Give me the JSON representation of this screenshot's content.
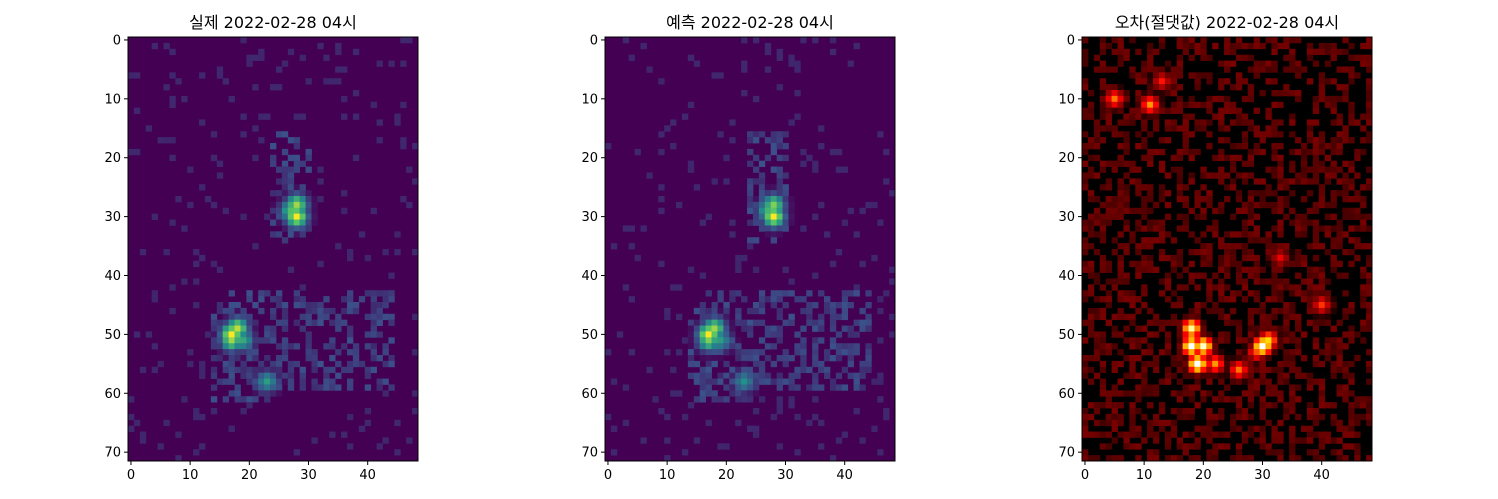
{
  "figure": {
    "background": "#ffffff"
  },
  "chart_data": [
    {
      "type": "heatmap",
      "title": "실제 2022-02-28 04시",
      "colormap": "viridis",
      "rows": 72,
      "cols": 49,
      "xlim": [
        -0.5,
        48.5
      ],
      "ylim": [
        71.5,
        -0.5
      ],
      "x_ticks": [
        0,
        10,
        20,
        30,
        40
      ],
      "y_ticks": [
        0,
        10,
        20,
        30,
        40,
        50,
        60,
        70
      ],
      "hotspots": [
        {
          "x": 28,
          "y": 28,
          "value": 0.85
        },
        {
          "x": 28,
          "y": 30,
          "value": 1.0
        },
        {
          "x": 27,
          "y": 29,
          "value": 0.7
        },
        {
          "x": 18,
          "y": 49,
          "value": 0.9
        },
        {
          "x": 17,
          "y": 50,
          "value": 1.0
        },
        {
          "x": 17,
          "y": 51,
          "value": 0.85
        },
        {
          "x": 19,
          "y": 51,
          "value": 0.6
        },
        {
          "x": 23,
          "y": 58,
          "value": 0.55
        }
      ],
      "xlabel": "",
      "ylabel": ""
    },
    {
      "type": "heatmap",
      "title": "예측 2022-02-28 04시",
      "colormap": "viridis",
      "rows": 72,
      "cols": 49,
      "xlim": [
        -0.5,
        48.5
      ],
      "ylim": [
        71.5,
        -0.5
      ],
      "x_ticks": [
        0,
        10,
        20,
        30,
        40
      ],
      "y_ticks": [
        0,
        10,
        20,
        30,
        40,
        50,
        60,
        70
      ],
      "hotspots": [
        {
          "x": 28,
          "y": 28,
          "value": 0.8
        },
        {
          "x": 28,
          "y": 30,
          "value": 1.0
        },
        {
          "x": 27,
          "y": 29,
          "value": 0.65
        },
        {
          "x": 18,
          "y": 49,
          "value": 0.85
        },
        {
          "x": 17,
          "y": 50,
          "value": 1.0
        },
        {
          "x": 17,
          "y": 51,
          "value": 0.8
        },
        {
          "x": 19,
          "y": 51,
          "value": 0.55
        },
        {
          "x": 23,
          "y": 58,
          "value": 0.5
        }
      ],
      "xlabel": "",
      "ylabel": ""
    },
    {
      "type": "heatmap",
      "title": "오차(절댓값) 2022-02-28 04시",
      "colormap": "hot",
      "rows": 72,
      "cols": 49,
      "xlim": [
        -0.5,
        48.5
      ],
      "ylim": [
        71.5,
        -0.5
      ],
      "x_ticks": [
        0,
        10,
        20,
        30,
        40
      ],
      "y_ticks": [
        0,
        10,
        20,
        30,
        40,
        50,
        60,
        70
      ],
      "hotspots": [
        {
          "x": 5,
          "y": 10,
          "value": 0.55
        },
        {
          "x": 11,
          "y": 11,
          "value": 0.6
        },
        {
          "x": 13,
          "y": 7,
          "value": 0.4
        },
        {
          "x": 18,
          "y": 49,
          "value": 0.9
        },
        {
          "x": 18,
          "y": 52,
          "value": 1.0
        },
        {
          "x": 20,
          "y": 52,
          "value": 0.95
        },
        {
          "x": 19,
          "y": 55,
          "value": 1.0
        },
        {
          "x": 22,
          "y": 55,
          "value": 0.6
        },
        {
          "x": 30,
          "y": 52,
          "value": 1.0
        },
        {
          "x": 31,
          "y": 51,
          "value": 0.7
        },
        {
          "x": 29,
          "y": 53,
          "value": 0.5
        },
        {
          "x": 26,
          "y": 56,
          "value": 0.55
        },
        {
          "x": 40,
          "y": 45,
          "value": 0.45
        },
        {
          "x": 33,
          "y": 37,
          "value": 0.35
        }
      ],
      "xlabel": "",
      "ylabel": ""
    }
  ]
}
